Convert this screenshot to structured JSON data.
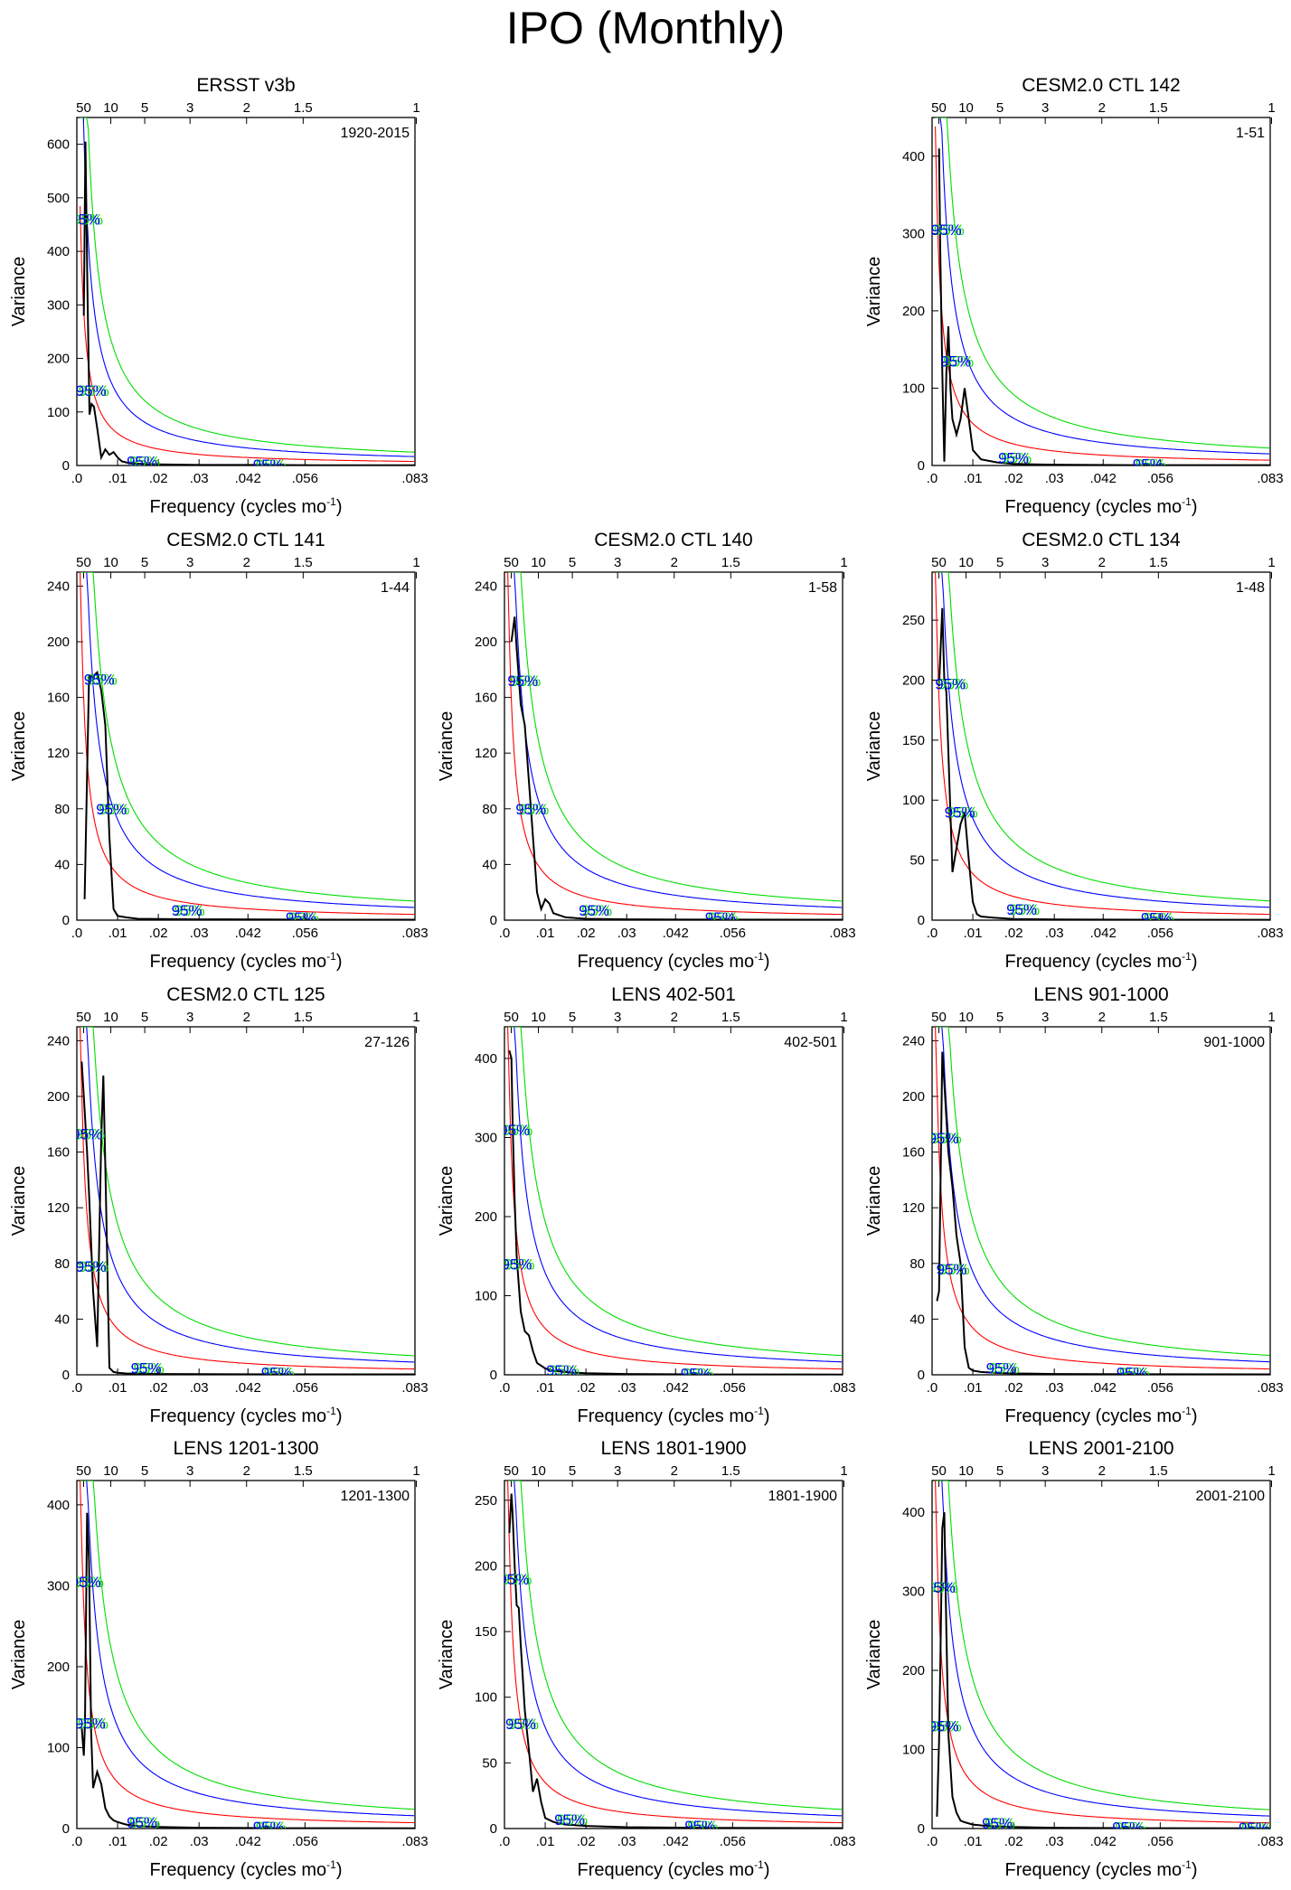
{
  "title": "IPO (Monthly)",
  "common": {
    "xlabel": "Frequency (cycles mo",
    "xlabel_sup": "-1",
    "xlabel_end": ")",
    "ylabel": "Variance",
    "x_ticks": [
      0,
      0.01,
      0.02,
      0.03,
      0.042,
      0.056,
      0.083
    ],
    "x_tick_labels": [
      ".0",
      ".01",
      ".02",
      ".03",
      ".042",
      ".056",
      ".083"
    ],
    "period_ticks": [
      50,
      10,
      5,
      3,
      2,
      1.5,
      1
    ],
    "period_tick_labels": [
      "50",
      "10",
      "5",
      "3",
      "2",
      "1.5",
      "1"
    ],
    "xlim": [
      0,
      0.083
    ],
    "conf_label": "95%",
    "line_colors": {
      "spectrum": "#000000",
      "red_noise": "#ff0000",
      "conf95": "#0000ff",
      "conf99": "#00dd00"
    }
  },
  "chart_data": [
    {
      "type": "line",
      "title": "ERSST v3b",
      "period": "1920-2015",
      "ylim": [
        0,
        650
      ],
      "y_ticks": [
        0,
        100,
        200,
        300,
        400,
        500,
        600
      ],
      "rn_amp": 420,
      "series": [
        {
          "x": [
            0.0017,
            0.0021,
            0.0026,
            0.0031,
            0.0036,
            0.0042,
            0.005,
            0.006,
            0.007,
            0.008,
            0.009,
            0.01,
            0.011,
            0.013,
            0.016,
            0.02,
            0.03,
            0.045,
            0.06,
            0.083
          ],
          "y": [
            280,
            605,
            330,
            95,
            115,
            110,
            70,
            15,
            30,
            20,
            25,
            15,
            8,
            4,
            3,
            2,
            1,
            1,
            0.5,
            0.5
          ]
        }
      ],
      "conf_label_positions": [
        [
          0.002,
          460
        ],
        [
          0.0035,
          140
        ],
        [
          0.016,
          8
        ],
        [
          0.047,
          2
        ]
      ]
    },
    {
      "type": "line",
      "title": "CESM2.0 CTL 142",
      "period": "1-51",
      "ylim": [
        0,
        450
      ],
      "y_ticks": [
        0,
        100,
        200,
        300,
        400
      ],
      "rn_amp": 380,
      "series": [
        {
          "x": [
            0.0017,
            0.002,
            0.0025,
            0.003,
            0.0035,
            0.004,
            0.0045,
            0.005,
            0.006,
            0.007,
            0.008,
            0.009,
            0.01,
            0.012,
            0.016,
            0.02,
            0.03,
            0.05,
            0.083
          ],
          "y": [
            410,
            280,
            120,
            5,
            120,
            180,
            100,
            60,
            40,
            60,
            100,
            60,
            20,
            8,
            4,
            2,
            1,
            0.5,
            0.5
          ]
        }
      ],
      "conf_label_positions": [
        [
          0.0035,
          305
        ],
        [
          0.0058,
          135
        ],
        [
          0.02,
          10
        ],
        [
          0.053,
          2
        ]
      ]
    },
    {
      "type": "line",
      "title": "CESM2.0 CTL 141",
      "period": "1-44",
      "ylim": [
        0,
        250
      ],
      "y_ticks": [
        0,
        40,
        80,
        120,
        160,
        200,
        240
      ],
      "rn_amp": 230,
      "series": [
        {
          "x": [
            0.0019,
            0.003,
            0.004,
            0.005,
            0.006,
            0.007,
            0.008,
            0.009,
            0.01,
            0.012,
            0.015,
            0.02,
            0.03,
            0.045,
            0.065,
            0.083
          ],
          "y": [
            15,
            175,
            175,
            178,
            165,
            140,
            60,
            8,
            3,
            2,
            1,
            0.8,
            0.6,
            0.5,
            0.3,
            0.3
          ]
        }
      ],
      "conf_label_positions": [
        [
          0.0055,
          173
        ],
        [
          0.0085,
          80
        ],
        [
          0.027,
          7
        ],
        [
          0.055,
          2
        ]
      ]
    },
    {
      "type": "line",
      "title": "CESM2.0 CTL 140",
      "period": "1-58",
      "ylim": [
        0,
        250
      ],
      "y_ticks": [
        0,
        40,
        80,
        120,
        160,
        200,
        240
      ],
      "rn_amp": 230,
      "series": [
        {
          "x": [
            0.0017,
            0.0025,
            0.003,
            0.004,
            0.005,
            0.006,
            0.007,
            0.008,
            0.009,
            0.01,
            0.011,
            0.012,
            0.015,
            0.02,
            0.03,
            0.05,
            0.083
          ],
          "y": [
            200,
            218,
            195,
            155,
            140,
            100,
            60,
            20,
            8,
            15,
            12,
            5,
            2,
            1,
            0.6,
            0.4,
            0.3
          ]
        }
      ],
      "conf_label_positions": [
        [
          0.0045,
          172
        ],
        [
          0.0065,
          80
        ],
        [
          0.022,
          7
        ],
        [
          0.053,
          2
        ]
      ]
    },
    {
      "type": "line",
      "title": "CESM2.0 CTL 134",
      "period": "1-48",
      "ylim": [
        0,
        290
      ],
      "y_ticks": [
        0,
        50,
        100,
        150,
        200,
        250
      ],
      "rn_amp": 270,
      "series": [
        {
          "x": [
            0.0017,
            0.0025,
            0.003,
            0.0035,
            0.004,
            0.005,
            0.006,
            0.007,
            0.008,
            0.009,
            0.01,
            0.011,
            0.012,
            0.015,
            0.02,
            0.03,
            0.05,
            0.083
          ],
          "y": [
            195,
            260,
            200,
            190,
            140,
            40,
            60,
            80,
            90,
            50,
            15,
            5,
            3,
            2,
            1,
            0.6,
            0.4,
            0.3
          ]
        }
      ],
      "conf_label_positions": [
        [
          0.0045,
          197
        ],
        [
          0.0068,
          90
        ],
        [
          0.022,
          9
        ],
        [
          0.055,
          2
        ]
      ]
    },
    {
      "type": "line",
      "title": "CESM2.0 CTL 125",
      "period": "27-126",
      "ylim": [
        0,
        250
      ],
      "y_ticks": [
        0,
        40,
        80,
        120,
        160,
        200,
        240
      ],
      "rn_amp": 230,
      "series": [
        {
          "x": [
            0.0012,
            0.0017,
            0.0025,
            0.003,
            0.004,
            0.005,
            0.006,
            0.0065,
            0.007,
            0.008,
            0.009,
            0.01,
            0.012,
            0.016,
            0.02,
            0.03,
            0.05,
            0.083
          ],
          "y": [
            225,
            200,
            160,
            130,
            60,
            20,
            170,
            215,
            150,
            5,
            2,
            1.5,
            1,
            0.8,
            0.6,
            0.5,
            0.3,
            0.3
          ]
        }
      ],
      "conf_label_positions": [
        [
          0.0025,
          173
        ],
        [
          0.0035,
          78
        ],
        [
          0.017,
          5
        ],
        [
          0.049,
          1.5
        ]
      ]
    },
    {
      "type": "line",
      "title": "LENS 402-501",
      "period": "402-501",
      "ylim": [
        0,
        440
      ],
      "y_ticks": [
        0,
        100,
        200,
        300,
        400
      ],
      "rn_amp": 410,
      "series": [
        {
          "x": [
            0.0012,
            0.0017,
            0.002,
            0.0025,
            0.003,
            0.004,
            0.005,
            0.006,
            0.007,
            0.008,
            0.01,
            0.012,
            0.016,
            0.02,
            0.03,
            0.05,
            0.083
          ],
          "y": [
            410,
            400,
            320,
            220,
            150,
            80,
            55,
            50,
            30,
            15,
            8,
            5,
            3,
            2,
            1,
            0.5,
            0.3
          ]
        }
      ],
      "conf_label_positions": [
        [
          0.0025,
          310
        ],
        [
          0.003,
          140
        ],
        [
          0.014,
          6
        ],
        [
          0.047,
          2
        ]
      ]
    },
    {
      "type": "line",
      "title": "LENS 901-1000",
      "period": "901-1000",
      "ylim": [
        0,
        250
      ],
      "y_ticks": [
        0,
        40,
        80,
        120,
        160,
        200,
        240
      ],
      "rn_amp": 235,
      "series": [
        {
          "x": [
            0.0012,
            0.0017,
            0.0025,
            0.003,
            0.004,
            0.005,
            0.006,
            0.007,
            0.008,
            0.009,
            0.01,
            0.012,
            0.015,
            0.02,
            0.03,
            0.05,
            0.083
          ],
          "y": [
            53,
            60,
            232,
            210,
            160,
            135,
            100,
            80,
            20,
            5,
            3,
            2,
            1.5,
            1,
            0.6,
            0.4,
            0.3
          ]
        }
      ],
      "conf_label_positions": [
        [
          0.0028,
          170
        ],
        [
          0.0048,
          76
        ],
        [
          0.017,
          5
        ],
        [
          0.049,
          1.5
        ]
      ]
    },
    {
      "type": "line",
      "title": "LENS 1201-1300",
      "period": "1201-1300",
      "ylim": [
        0,
        430
      ],
      "y_ticks": [
        0,
        100,
        200,
        300,
        400
      ],
      "rn_amp": 400,
      "series": [
        {
          "x": [
            0.0012,
            0.0017,
            0.002,
            0.0025,
            0.003,
            0.0035,
            0.004,
            0.005,
            0.006,
            0.007,
            0.008,
            0.009,
            0.01,
            0.012,
            0.015,
            0.02,
            0.03,
            0.05,
            0.083
          ],
          "y": [
            125,
            90,
            130,
            390,
            330,
            120,
            50,
            70,
            55,
            25,
            15,
            10,
            8,
            5,
            3,
            2,
            1,
            0.5,
            0.3
          ]
        }
      ],
      "conf_label_positions": [
        [
          0.0022,
          305
        ],
        [
          0.0033,
          130
        ],
        [
          0.016,
          8
        ],
        [
          0.047,
          2
        ]
      ]
    },
    {
      "type": "line",
      "title": "LENS 1801-1900",
      "period": "1801-1900",
      "ylim": [
        0,
        265
      ],
      "y_ticks": [
        0,
        50,
        100,
        150,
        200,
        250
      ],
      "rn_amp": 245,
      "series": [
        {
          "x": [
            0.0012,
            0.0017,
            0.002,
            0.0025,
            0.003,
            0.0035,
            0.004,
            0.005,
            0.006,
            0.007,
            0.008,
            0.009,
            0.01,
            0.012,
            0.015,
            0.02,
            0.03,
            0.05,
            0.083
          ],
          "y": [
            225,
            255,
            240,
            200,
            170,
            168,
            140,
            90,
            60,
            28,
            38,
            20,
            8,
            5,
            3,
            2,
            1,
            0.5,
            0.3
          ]
        }
      ],
      "conf_label_positions": [
        [
          0.0023,
          190
        ],
        [
          0.004,
          80
        ],
        [
          0.016,
          7
        ],
        [
          0.048,
          2
        ]
      ]
    },
    {
      "type": "line",
      "title": "LENS 2001-2100",
      "period": "2001-2100",
      "ylim": [
        0,
        440
      ],
      "y_ticks": [
        0,
        100,
        200,
        300,
        400
      ],
      "rn_amp": 400,
      "series": [
        {
          "x": [
            0.0012,
            0.0017,
            0.002,
            0.0025,
            0.003,
            0.0035,
            0.004,
            0.005,
            0.006,
            0.007,
            0.008,
            0.01,
            0.012,
            0.015,
            0.02,
            0.03,
            0.05,
            0.083
          ],
          "y": [
            15,
            110,
            200,
            380,
            400,
            250,
            120,
            40,
            20,
            10,
            8,
            5,
            4,
            3,
            2,
            1,
            0.5,
            0.3
          ]
        }
      ],
      "conf_label_positions": [
        [
          0.002,
          305
        ],
        [
          0.0028,
          130
        ],
        [
          0.016,
          7
        ],
        [
          0.048,
          2
        ],
        [
          0.079,
          1
        ]
      ]
    }
  ]
}
